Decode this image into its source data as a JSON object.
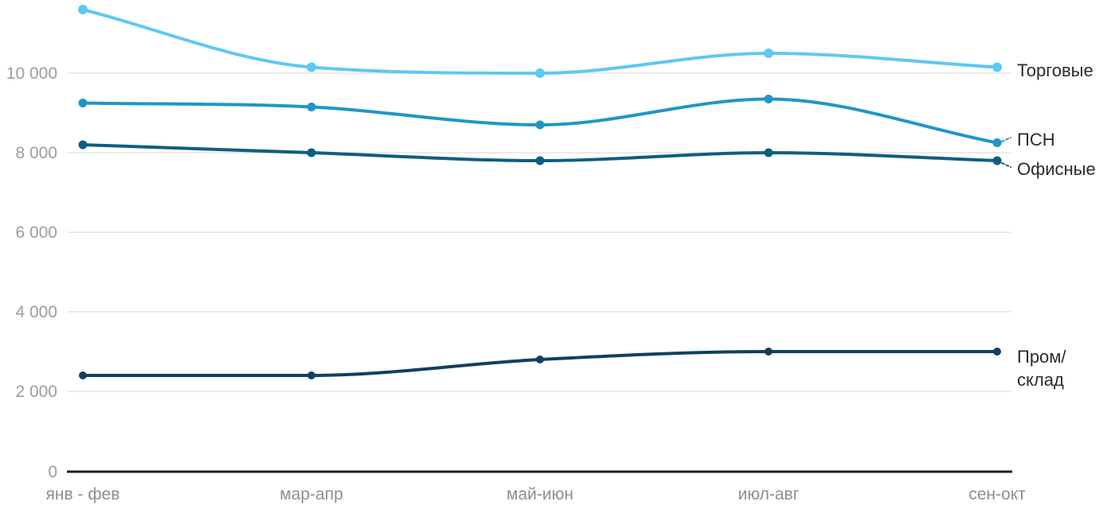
{
  "chart_data": {
    "type": "line",
    "title": "",
    "categories": [
      "янв - фев",
      "мар-апр",
      "май-июн",
      "июл-авг",
      "сен-окт"
    ],
    "series": [
      {
        "name": "Торговые",
        "label_lines": [
          "Торговые"
        ],
        "color": "#5EC8F2",
        "values": [
          11600,
          10150,
          10000,
          10500,
          10150
        ]
      },
      {
        "name": "ПСН",
        "label_lines": [
          "ПСН"
        ],
        "color": "#1F96C7",
        "values": [
          9250,
          9150,
          8700,
          9350,
          8250
        ]
      },
      {
        "name": "Офисные",
        "label_lines": [
          "Офисные"
        ],
        "color": "#0D5F80",
        "values": [
          8200,
          8000,
          7800,
          8000,
          7800
        ]
      },
      {
        "name": "Пром/склад",
        "label_lines": [
          "Пром/",
          "склад"
        ],
        "color": "#10405F",
        "values": [
          2400,
          2400,
          2800,
          3000,
          3000
        ]
      }
    ],
    "y_axis": {
      "ticks": [
        0,
        2000,
        4000,
        6000,
        8000,
        10000
      ],
      "tick_labels": [
        "0",
        "2 000",
        "4 000",
        "6 000",
        "8 000",
        "10 000"
      ],
      "range": [
        0,
        11840
      ]
    },
    "xlabel": "",
    "ylabel": "",
    "grid": true,
    "smooth": true,
    "legend_position": "right-end-of-line"
  },
  "colors": {
    "background": "#FFFFFF",
    "gridline": "#E8E8E8",
    "axis_line": "#1F1F1F",
    "y_tick_label": "#9D9D9D",
    "x_tick_label": "#8E8E8E",
    "series_label": "#2B2B2B"
  }
}
